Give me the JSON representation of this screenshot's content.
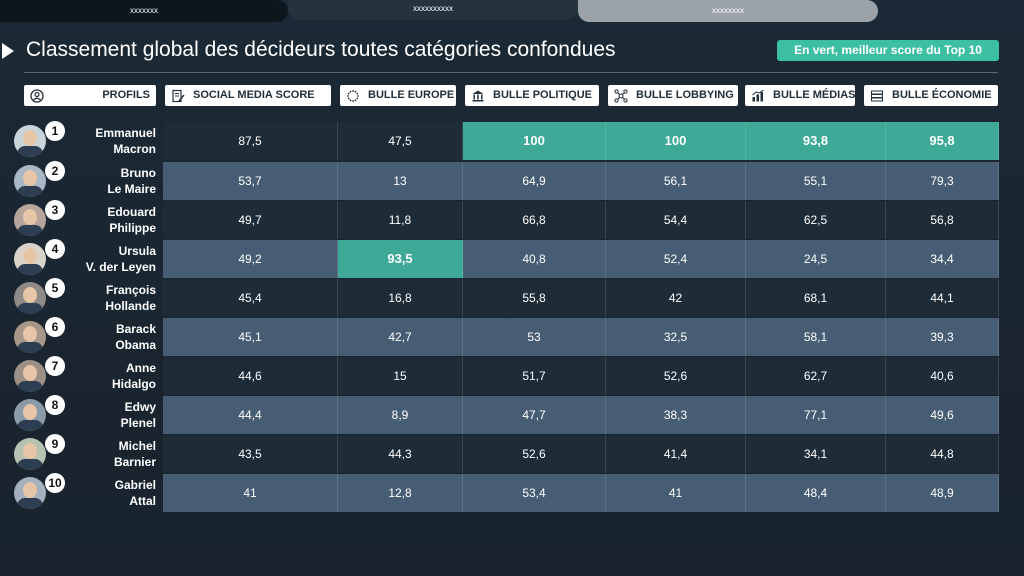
{
  "tabs": [
    "xxxxxxx",
    "xxxxxxxxxx",
    "xxxxxxxx"
  ],
  "title": "Classement global des décideurs toutes catégories confondues",
  "legend": "En vert, meilleur score du Top 10",
  "colors": {
    "highlight": "#3ea997",
    "row_dark": "#1e2c37",
    "row_light": "#465d73",
    "badge": "#3dbfa3"
  },
  "headers": [
    {
      "label": "PROFILS",
      "icon": "user-circle-icon"
    },
    {
      "label": "SOCIAL MEDIA SCORE",
      "icon": "edit-document-icon"
    },
    {
      "label": "BULLE EUROPE",
      "icon": "eu-stars-icon"
    },
    {
      "label": "BULLE POLITIQUE",
      "icon": "government-building-icon"
    },
    {
      "label": "BULLE LOBBYING",
      "icon": "network-nodes-icon"
    },
    {
      "label": "BULLE MÉDIAS",
      "icon": "media-chart-icon"
    },
    {
      "label": "BULLE ÉCONOMIE",
      "icon": "money-stack-icon"
    }
  ],
  "rows": [
    {
      "rank": "1",
      "first": "Emmanuel",
      "last": "Macron",
      "values": [
        "87,5",
        "47,5",
        "100",
        "100",
        "93,8",
        "95,8"
      ],
      "best": [
        2,
        3,
        4,
        5
      ]
    },
    {
      "rank": "2",
      "first": "Bruno",
      "last": "Le Maire",
      "values": [
        "53,7",
        "13",
        "64,9",
        "56,1",
        "55,1",
        "79,3"
      ],
      "best": []
    },
    {
      "rank": "3",
      "first": "Edouard",
      "last": "Philippe",
      "values": [
        "49,7",
        "11,8",
        "66,8",
        "54,4",
        "62,5",
        "56,8"
      ],
      "best": []
    },
    {
      "rank": "4",
      "first": "Ursula",
      "last": "V. der Leyen",
      "values": [
        "49,2",
        "93,5",
        "40,8",
        "52,4",
        "24,5",
        "34,4"
      ],
      "best": [
        1
      ]
    },
    {
      "rank": "5",
      "first": "François",
      "last": "Hollande",
      "values": [
        "45,4",
        "16,8",
        "55,8",
        "42",
        "68,1",
        "44,1"
      ],
      "best": []
    },
    {
      "rank": "6",
      "first": "Barack",
      "last": "Obama",
      "values": [
        "45,1",
        "42,7",
        "53",
        "32,5",
        "58,1",
        "39,3"
      ],
      "best": []
    },
    {
      "rank": "7",
      "first": "Anne",
      "last": "Hidalgo",
      "values": [
        "44,6",
        "15",
        "51,7",
        "52,6",
        "62,7",
        "40,6"
      ],
      "best": []
    },
    {
      "rank": "8",
      "first": "Edwy",
      "last": "Plenel",
      "values": [
        "44,4",
        "8,9",
        "47,7",
        "38,3",
        "77,1",
        "49,6"
      ],
      "best": []
    },
    {
      "rank": "9",
      "first": "Michel",
      "last": "Barnier",
      "values": [
        "43,5",
        "44,3",
        "52,6",
        "41,4",
        "34,1",
        "44,8"
      ],
      "best": []
    },
    {
      "rank": "10",
      "first": "Gabriel",
      "last": "Attal",
      "values": [
        "41",
        "12,8",
        "53,4",
        "41",
        "48,4",
        "48,9"
      ],
      "best": []
    }
  ]
}
